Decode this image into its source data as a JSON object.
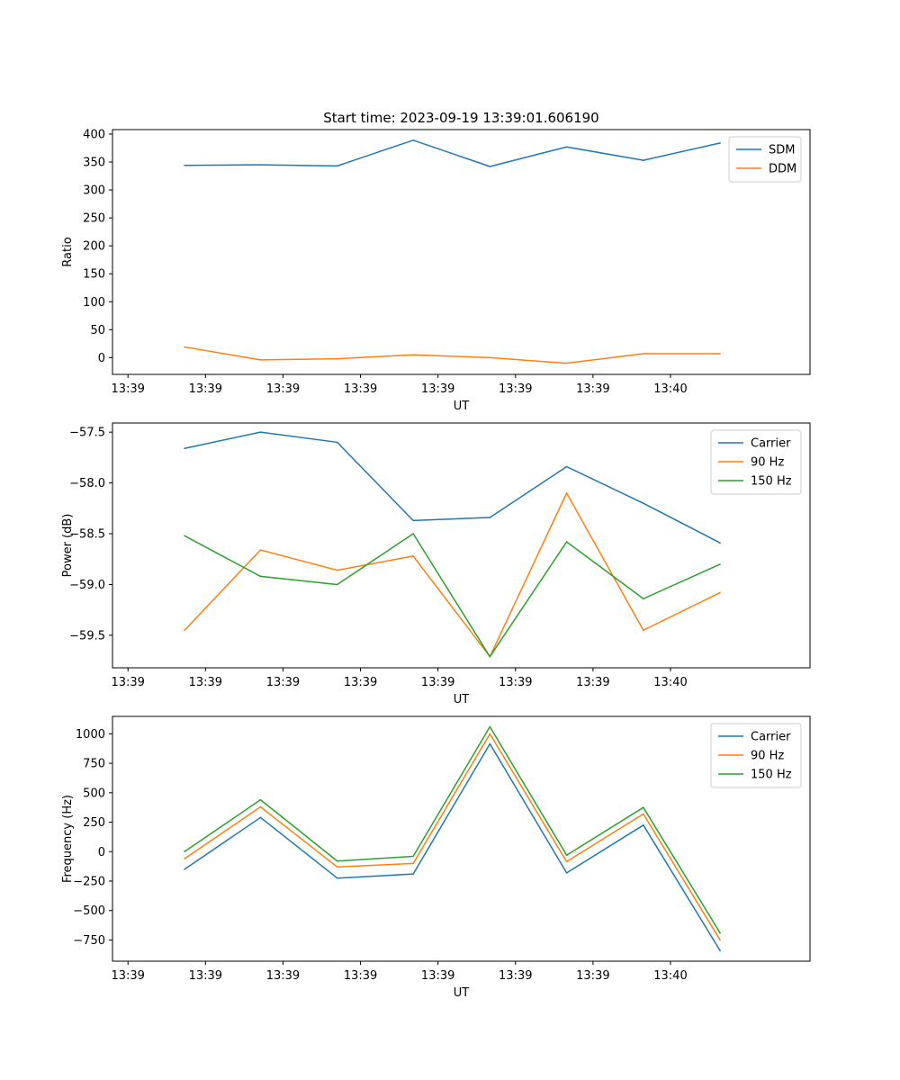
{
  "chart_data": [
    {
      "type": "line",
      "title": "Start time: 2023-09-19 13:39:01.606190",
      "xlabel": "UT",
      "ylabel": "Ratio",
      "xlim": [
        0,
        9
      ],
      "ylim": [
        -30,
        408
      ],
      "xticks": [
        0.2,
        1.2,
        2.2,
        3.2,
        4.2,
        5.2,
        6.2,
        7.2
      ],
      "xtick_labels": [
        "13:39",
        "13:39",
        "13:39",
        "13:39",
        "13:39",
        "13:39",
        "13:39",
        "13:40"
      ],
      "yticks": [
        0,
        50,
        100,
        150,
        200,
        250,
        300,
        350,
        400
      ],
      "ytick_labels": [
        "0",
        "50",
        "100",
        "150",
        "200",
        "250",
        "300",
        "350",
        "400"
      ],
      "legend_position": "top-right",
      "x": [
        0.93,
        1.91,
        2.9,
        3.88,
        4.87,
        5.86,
        6.85,
        7.84
      ],
      "series": [
        {
          "name": "SDM",
          "color": "#1f77b4",
          "values": [
            344,
            345,
            343,
            389,
            342,
            377,
            353,
            384
          ]
        },
        {
          "name": "DDM",
          "color": "#ff7f0e",
          "values": [
            19,
            -4,
            -2,
            5,
            0,
            -10,
            7,
            7
          ]
        }
      ]
    },
    {
      "type": "line",
      "title": "",
      "xlabel": "UT",
      "ylabel": "Power (dB)",
      "xlim": [
        0,
        9
      ],
      "ylim": [
        -59.82,
        -57.41
      ],
      "xticks": [
        0.2,
        1.2,
        2.2,
        3.2,
        4.2,
        5.2,
        6.2,
        7.2
      ],
      "xtick_labels": [
        "13:39",
        "13:39",
        "13:39",
        "13:39",
        "13:39",
        "13:39",
        "13:39",
        "13:40"
      ],
      "yticks": [
        -57.5,
        -58.0,
        -58.5,
        -59.0,
        -59.5
      ],
      "ytick_labels": [
        "−57.5",
        "−58.0",
        "−58.5",
        "−59.0",
        "−59.5"
      ],
      "legend_position": "top-right",
      "x": [
        0.93,
        1.91,
        2.9,
        3.88,
        4.87,
        5.86,
        6.85,
        7.84
      ],
      "series": [
        {
          "name": "Carrier",
          "color": "#1f77b4",
          "values": [
            -57.66,
            -57.5,
            -57.6,
            -58.37,
            -58.34,
            -57.84,
            -58.2,
            -58.59
          ]
        },
        {
          "name": "90 Hz",
          "color": "#ff7f0e",
          "values": [
            -59.45,
            -58.66,
            -58.86,
            -58.72,
            -59.71,
            -58.1,
            -59.45,
            -59.08
          ]
        },
        {
          "name": "150 Hz",
          "color": "#2ca02c",
          "values": [
            -58.52,
            -58.92,
            -59.0,
            -58.5,
            -59.71,
            -58.58,
            -59.14,
            -58.8
          ]
        }
      ]
    },
    {
      "type": "line",
      "title": "",
      "xlabel": "UT",
      "ylabel": "Frequency (Hz)",
      "xlim": [
        0,
        9
      ],
      "ylim": [
        -930,
        1148
      ],
      "xticks": [
        0.2,
        1.2,
        2.2,
        3.2,
        4.2,
        5.2,
        6.2,
        7.2
      ],
      "xtick_labels": [
        "13:39",
        "13:39",
        "13:39",
        "13:39",
        "13:39",
        "13:39",
        "13:39",
        "13:40"
      ],
      "yticks": [
        1000,
        750,
        500,
        250,
        0,
        -250,
        -500,
        -750
      ],
      "ytick_labels": [
        "1000",
        "750",
        "500",
        "250",
        "0",
        "−250",
        "−500",
        "−750"
      ],
      "legend_position": "top-right",
      "x": [
        0.93,
        1.91,
        2.9,
        3.88,
        4.87,
        5.86,
        6.85,
        7.84
      ],
      "series": [
        {
          "name": "Carrier",
          "color": "#1f77b4",
          "values": [
            -150,
            290,
            -225,
            -190,
            915,
            -180,
            225,
            -840
          ]
        },
        {
          "name": "90 Hz",
          "color": "#ff7f0e",
          "values": [
            -60,
            380,
            -130,
            -100,
            1000,
            -85,
            320,
            -750
          ]
        },
        {
          "name": "150 Hz",
          "color": "#2ca02c",
          "values": [
            0,
            440,
            -80,
            -40,
            1060,
            -30,
            375,
            -690
          ]
        }
      ]
    }
  ]
}
